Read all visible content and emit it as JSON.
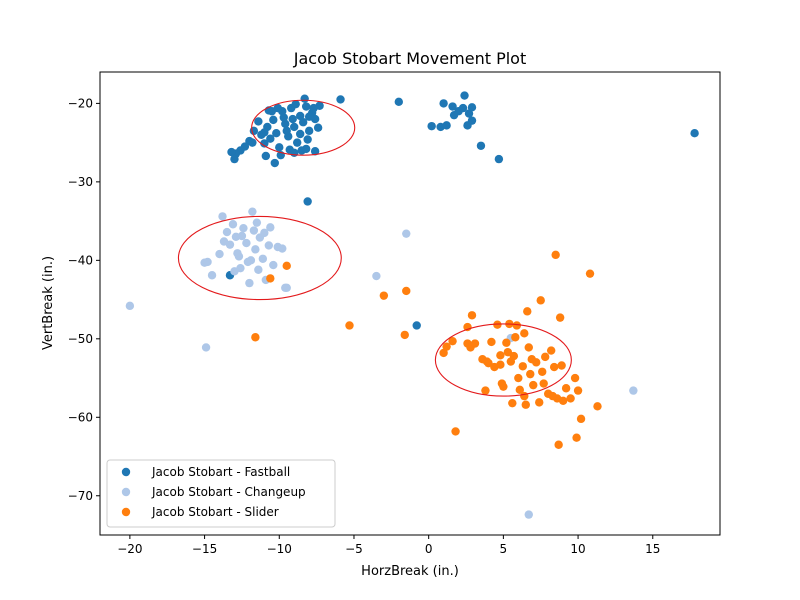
{
  "chart_data": {
    "type": "scatter",
    "title": "Jacob Stobart Movement Plot",
    "xlabel": "HorzBreak (in.)",
    "ylabel": "VertBreak (in.)",
    "xlim": [
      -22,
      19.5
    ],
    "ylim": [
      -75,
      -16
    ],
    "xticks": [
      -20,
      -15,
      -10,
      -5,
      0,
      5,
      10,
      15
    ],
    "yticks": [
      -20,
      -30,
      -40,
      -50,
      -60,
      -70
    ],
    "xtick_labels": [
      "−20",
      "−15",
      "−10",
      "−5",
      "0",
      "5",
      "10",
      "15"
    ],
    "ytick_labels": [
      "−20",
      "−30",
      "−40",
      "−50",
      "−60",
      "−70"
    ],
    "grid": false,
    "legend_position": "lower-left",
    "series": [
      {
        "name": "Jacob Stobart - Fastball",
        "color": "#1f77b4",
        "points": [
          [
            -11.7,
            -23.5
          ],
          [
            -11.2,
            -24.0
          ],
          [
            -11.0,
            -25.1
          ],
          [
            -10.8,
            -23.0
          ],
          [
            -10.6,
            -24.5
          ],
          [
            -10.4,
            -22.1
          ],
          [
            -10.2,
            -23.8
          ],
          [
            -10.0,
            -25.6
          ],
          [
            -9.8,
            -21.0
          ],
          [
            -9.6,
            -22.6
          ],
          [
            -9.4,
            -24.2
          ],
          [
            -9.2,
            -20.6
          ],
          [
            -9.0,
            -23.0
          ],
          [
            -8.8,
            -25.0
          ],
          [
            -8.6,
            -21.6
          ],
          [
            -8.4,
            -22.4
          ],
          [
            -8.2,
            -20.4
          ],
          [
            -8.0,
            -23.5
          ],
          [
            -7.8,
            -21.2
          ],
          [
            -7.6,
            -22.0
          ],
          [
            -7.4,
            -23.1
          ],
          [
            -7.3,
            -20.3
          ],
          [
            -9.3,
            -25.9
          ],
          [
            -8.5,
            -26.0
          ],
          [
            -10.1,
            -20.6
          ],
          [
            -8.9,
            -20.1
          ],
          [
            -8.3,
            -19.4
          ],
          [
            -7.7,
            -20.6
          ],
          [
            -9.7,
            -21.8
          ],
          [
            -8.1,
            -24.6
          ],
          [
            -10.5,
            -21.0
          ],
          [
            -11.4,
            -22.3
          ],
          [
            -12.0,
            -24.8
          ],
          [
            -12.3,
            -25.5
          ],
          [
            -12.6,
            -26.0
          ],
          [
            -12.9,
            -26.4
          ],
          [
            -13.0,
            -27.1
          ],
          [
            -13.2,
            -26.2
          ],
          [
            -11.8,
            -25.0
          ],
          [
            -10.9,
            -26.7
          ],
          [
            -10.3,
            -27.6
          ],
          [
            -9.9,
            -26.6
          ],
          [
            -9.0,
            -26.3
          ],
          [
            -8.2,
            -25.8
          ],
          [
            -7.6,
            -26.1
          ],
          [
            -11.0,
            -23.7
          ],
          [
            -9.5,
            -23.5
          ],
          [
            -8.6,
            -23.9
          ],
          [
            -8.0,
            -21.7
          ],
          [
            -9.1,
            -22.0
          ],
          [
            -10.7,
            -20.9
          ],
          [
            -5.9,
            -19.5
          ],
          [
            -8.1,
            -32.5
          ],
          [
            -2.0,
            -19.8
          ],
          [
            0.2,
            -22.9
          ],
          [
            0.8,
            -23.0
          ],
          [
            1.2,
            -22.8
          ],
          [
            1.0,
            -20.0
          ],
          [
            1.6,
            -20.4
          ],
          [
            2.0,
            -21.0
          ],
          [
            2.3,
            -20.6
          ],
          [
            2.4,
            -19.0
          ],
          [
            2.7,
            -21.3
          ],
          [
            2.9,
            -20.5
          ],
          [
            2.9,
            -22.2
          ],
          [
            2.6,
            -22.8
          ],
          [
            1.7,
            -21.5
          ],
          [
            3.5,
            -25.4
          ],
          [
            4.7,
            -27.1
          ],
          [
            17.8,
            -23.8
          ],
          [
            -13.3,
            -41.9
          ],
          [
            -0.8,
            -48.3
          ]
        ]
      },
      {
        "name": "Jacob Stobart - Changeup",
        "color": "#aec7e8",
        "points": [
          [
            -20.0,
            -45.8
          ],
          [
            -15.0,
            -40.3
          ],
          [
            -14.8,
            -40.2
          ],
          [
            -14.9,
            -51.1
          ],
          [
            -14.5,
            -41.9
          ],
          [
            -14.0,
            -39.2
          ],
          [
            -13.8,
            -34.4
          ],
          [
            -13.7,
            -37.6
          ],
          [
            -13.5,
            -36.4
          ],
          [
            -13.3,
            -38.0
          ],
          [
            -13.1,
            -35.4
          ],
          [
            -12.9,
            -37.0
          ],
          [
            -12.7,
            -39.5
          ],
          [
            -12.6,
            -41.0
          ],
          [
            -12.4,
            -35.9
          ],
          [
            -12.2,
            -37.8
          ],
          [
            -12.1,
            -40.2
          ],
          [
            -12.0,
            -42.9
          ],
          [
            -11.8,
            -33.8
          ],
          [
            -11.7,
            -36.2
          ],
          [
            -11.6,
            -38.6
          ],
          [
            -11.4,
            -41.2
          ],
          [
            -11.3,
            -37.1
          ],
          [
            -11.1,
            -39.8
          ],
          [
            -11.0,
            -36.5
          ],
          [
            -10.9,
            -42.5
          ],
          [
            -10.7,
            -38.1
          ],
          [
            -10.6,
            -35.8
          ],
          [
            -10.4,
            -40.6
          ],
          [
            -10.1,
            -38.3
          ],
          [
            -9.8,
            -38.5
          ],
          [
            -9.6,
            -43.5
          ],
          [
            -9.5,
            -43.5
          ],
          [
            -11.5,
            -35.2
          ],
          [
            -12.5,
            -36.9
          ],
          [
            -13.0,
            -41.4
          ],
          [
            -11.9,
            -40.0
          ],
          [
            -12.8,
            -39.1
          ],
          [
            -3.5,
            -42.0
          ],
          [
            -1.5,
            -36.6
          ],
          [
            5.5,
            -49.9
          ],
          [
            6.7,
            -72.4
          ],
          [
            13.7,
            -56.6
          ]
        ]
      },
      {
        "name": "Jacob Stobart - Slider",
        "color": "#ff7f0e",
        "points": [
          [
            -11.6,
            -49.8
          ],
          [
            -10.6,
            -42.3
          ],
          [
            -9.5,
            -40.7
          ],
          [
            -5.3,
            -48.3
          ],
          [
            -3.0,
            -44.5
          ],
          [
            -1.6,
            -49.5
          ],
          [
            -1.5,
            -43.9
          ],
          [
            1.0,
            -51.8
          ],
          [
            1.2,
            -51.0
          ],
          [
            1.6,
            -50.3
          ],
          [
            1.8,
            -61.8
          ],
          [
            2.6,
            -50.6
          ],
          [
            2.6,
            -48.5
          ],
          [
            2.8,
            -51.1
          ],
          [
            2.9,
            -47.0
          ],
          [
            3.1,
            -50.6
          ],
          [
            3.6,
            -52.6
          ],
          [
            3.8,
            -56.6
          ],
          [
            4.0,
            -53.1
          ],
          [
            4.2,
            -50.4
          ],
          [
            4.4,
            -53.6
          ],
          [
            4.6,
            -48.2
          ],
          [
            4.8,
            -52.1
          ],
          [
            4.9,
            -55.7
          ],
          [
            5.0,
            -56.1
          ],
          [
            5.2,
            -50.5
          ],
          [
            5.4,
            -48.1
          ],
          [
            5.5,
            -52.9
          ],
          [
            5.6,
            -58.2
          ],
          [
            5.8,
            -49.8
          ],
          [
            6.0,
            -55.0
          ],
          [
            6.1,
            -56.5
          ],
          [
            6.3,
            -53.5
          ],
          [
            6.4,
            -57.3
          ],
          [
            6.5,
            -58.4
          ],
          [
            6.7,
            -51.1
          ],
          [
            6.8,
            -54.5
          ],
          [
            7.0,
            -55.9
          ],
          [
            7.2,
            -53.0
          ],
          [
            7.4,
            -58.1
          ],
          [
            7.5,
            -45.1
          ],
          [
            7.6,
            -54.2
          ],
          [
            7.8,
            -52.3
          ],
          [
            8.0,
            -57.0
          ],
          [
            8.2,
            -51.5
          ],
          [
            8.4,
            -53.6
          ],
          [
            8.5,
            -39.3
          ],
          [
            8.6,
            -57.6
          ],
          [
            8.8,
            -47.3
          ],
          [
            8.9,
            -53.4
          ],
          [
            9.0,
            -57.9
          ],
          [
            9.2,
            -56.3
          ],
          [
            9.5,
            -57.6
          ],
          [
            9.8,
            -55.0
          ],
          [
            10.0,
            -56.6
          ],
          [
            10.2,
            -60.2
          ],
          [
            9.9,
            -62.6
          ],
          [
            8.7,
            -63.5
          ],
          [
            10.8,
            -41.7
          ],
          [
            11.3,
            -58.6
          ],
          [
            6.6,
            -46.5
          ],
          [
            5.9,
            -48.3
          ],
          [
            6.4,
            -49.3
          ],
          [
            3.9,
            -52.9
          ],
          [
            4.8,
            -53.3
          ],
          [
            5.3,
            -51.7
          ],
          [
            7.7,
            -55.7
          ],
          [
            6.9,
            -52.6
          ],
          [
            8.3,
            -57.3
          ],
          [
            5.7,
            -52.2
          ]
        ]
      }
    ],
    "ellipses": [
      {
        "series": "Jacob Stobart - Fastball",
        "center": [
          -8.4,
          -23.1
        ],
        "width": 6.9,
        "height": 7.0,
        "color": "#e31a1c"
      },
      {
        "series": "Jacob Stobart - Changeup",
        "center": [
          -11.3,
          -39.7
        ],
        "width": 10.9,
        "height": 10.6,
        "color": "#e31a1c"
      },
      {
        "series": "Jacob Stobart - Slider",
        "center": [
          5.0,
          -52.7
        ],
        "width": 9.1,
        "height": 9.2,
        "color": "#e31a1c"
      }
    ]
  }
}
